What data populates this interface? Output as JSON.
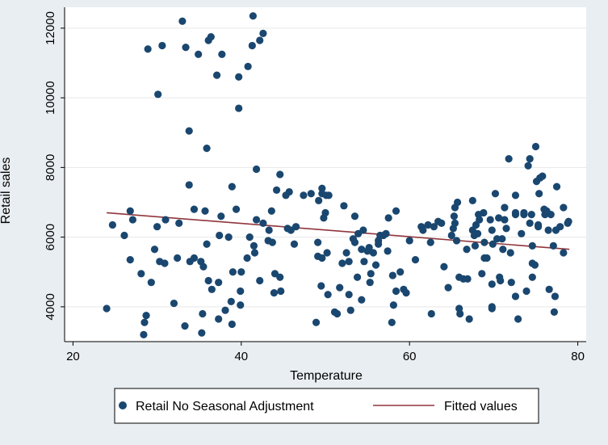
{
  "chart_data": {
    "type": "scatter",
    "xlabel": "Temperature",
    "ylabel": "Retail sales",
    "xlim": [
      19,
      81
    ],
    "ylim": [
      3000,
      12600
    ],
    "xticks": [
      20,
      40,
      60,
      80
    ],
    "yticks": [
      4000,
      6000,
      8000,
      10000,
      12000
    ],
    "grid": "horizontal",
    "legend_position": "bottom",
    "series": [
      {
        "name": "Retail No Seasonal Adjustment",
        "kind": "scatter",
        "color": "#1a476f",
        "points": [
          [
            24.0,
            3950
          ],
          [
            24.7,
            6350
          ],
          [
            26.1,
            6050
          ],
          [
            26.8,
            6750
          ],
          [
            26.8,
            5350
          ],
          [
            27.1,
            6500
          ],
          [
            28.1,
            4950
          ],
          [
            28.4,
            3200
          ],
          [
            28.5,
            3550
          ],
          [
            28.7,
            3750
          ],
          [
            28.9,
            11400
          ],
          [
            29.3,
            4700
          ],
          [
            29.7,
            5650
          ],
          [
            30.0,
            6300
          ],
          [
            30.1,
            10100
          ],
          [
            30.3,
            5300
          ],
          [
            30.6,
            11500
          ],
          [
            30.9,
            5250
          ],
          [
            31.0,
            6500
          ],
          [
            32.0,
            4100
          ],
          [
            32.4,
            5400
          ],
          [
            32.6,
            6400
          ],
          [
            33.0,
            12200
          ],
          [
            33.3,
            3450
          ],
          [
            33.4,
            11450
          ],
          [
            33.8,
            9050
          ],
          [
            33.8,
            7500
          ],
          [
            33.9,
            5300
          ],
          [
            34.4,
            6800
          ],
          [
            34.4,
            5400
          ],
          [
            34.9,
            11250
          ],
          [
            35.2,
            5300
          ],
          [
            35.3,
            3250
          ],
          [
            35.4,
            3800
          ],
          [
            35.5,
            5150
          ],
          [
            35.7,
            6750
          ],
          [
            35.9,
            8550
          ],
          [
            35.9,
            5800
          ],
          [
            36.1,
            11650
          ],
          [
            36.1,
            4750
          ],
          [
            36.4,
            11750
          ],
          [
            36.5,
            4500
          ],
          [
            37.1,
            10650
          ],
          [
            37.3,
            3650
          ],
          [
            37.3,
            4700
          ],
          [
            37.4,
            6050
          ],
          [
            37.6,
            6600
          ],
          [
            37.7,
            11250
          ],
          [
            38.1,
            3900
          ],
          [
            38.5,
            6000
          ],
          [
            38.8,
            4150
          ],
          [
            38.9,
            3500
          ],
          [
            38.9,
            7450
          ],
          [
            39.0,
            5000
          ],
          [
            39.4,
            6800
          ],
          [
            39.7,
            9700
          ],
          [
            39.7,
            10600
          ],
          [
            39.9,
            4450
          ],
          [
            39.9,
            4050
          ],
          [
            40.0,
            5000
          ],
          [
            40.7,
            5400
          ],
          [
            40.8,
            10900
          ],
          [
            41.0,
            6000
          ],
          [
            41.3,
            11500
          ],
          [
            41.4,
            12350
          ],
          [
            41.5,
            5750
          ],
          [
            41.6,
            5550
          ],
          [
            41.8,
            6500
          ],
          [
            41.8,
            7950
          ],
          [
            42.2,
            11650
          ],
          [
            42.2,
            4750
          ],
          [
            42.6,
            11850
          ],
          [
            42.6,
            6400
          ],
          [
            43.2,
            5900
          ],
          [
            43.3,
            6200
          ],
          [
            43.6,
            6750
          ],
          [
            43.7,
            5850
          ],
          [
            43.9,
            4400
          ],
          [
            44.0,
            4950
          ],
          [
            44.2,
            7350
          ],
          [
            44.6,
            4850
          ],
          [
            44.6,
            7800
          ],
          [
            44.7,
            4450
          ],
          [
            45.3,
            7200
          ],
          [
            45.5,
            6250
          ],
          [
            45.7,
            7300
          ],
          [
            45.9,
            6200
          ],
          [
            46.3,
            5800
          ],
          [
            46.5,
            6300
          ],
          [
            47.4,
            7200
          ],
          [
            48.3,
            7250
          ],
          [
            48.9,
            3550
          ],
          [
            49.1,
            5450
          ],
          [
            49.1,
            5850
          ],
          [
            49.2,
            7050
          ],
          [
            49.5,
            4600
          ],
          [
            49.6,
            7400
          ],
          [
            49.6,
            7250
          ],
          [
            49.6,
            5400
          ],
          [
            49.8,
            6550
          ],
          [
            50.0,
            6700
          ],
          [
            50.1,
            7200
          ],
          [
            50.2,
            5550
          ],
          [
            50.3,
            4350
          ],
          [
            50.4,
            7200
          ],
          [
            51.1,
            3850
          ],
          [
            51.4,
            3800
          ],
          [
            51.7,
            4550
          ],
          [
            52.0,
            5250
          ],
          [
            52.2,
            6900
          ],
          [
            52.5,
            5550
          ],
          [
            52.8,
            4350
          ],
          [
            52.8,
            5300
          ],
          [
            53.0,
            3900
          ],
          [
            53.3,
            5950
          ],
          [
            53.5,
            6600
          ],
          [
            53.5,
            5850
          ],
          [
            53.8,
            4850
          ],
          [
            53.9,
            6100
          ],
          [
            54.3,
            5650
          ],
          [
            54.3,
            4200
          ],
          [
            54.5,
            6200
          ],
          [
            54.6,
            5300
          ],
          [
            55.0,
            5600
          ],
          [
            55.2,
            5700
          ],
          [
            55.3,
            4700
          ],
          [
            55.4,
            4950
          ],
          [
            55.7,
            5550
          ],
          [
            56.0,
            5200
          ],
          [
            56.3,
            5900
          ],
          [
            56.3,
            5800
          ],
          [
            56.5,
            6050
          ],
          [
            56.9,
            6050
          ],
          [
            57.2,
            6100
          ],
          [
            57.4,
            5600
          ],
          [
            57.5,
            6550
          ],
          [
            57.9,
            3550
          ],
          [
            58.0,
            4900
          ],
          [
            58.1,
            4050
          ],
          [
            58.4,
            4450
          ],
          [
            58.4,
            6750
          ],
          [
            58.9,
            5000
          ],
          [
            59.3,
            4500
          ],
          [
            59.6,
            4400
          ],
          [
            60.0,
            5900
          ],
          [
            60.7,
            5350
          ],
          [
            61.4,
            6300
          ],
          [
            61.6,
            6200
          ],
          [
            62.2,
            6350
          ],
          [
            62.5,
            5850
          ],
          [
            62.6,
            3800
          ],
          [
            62.9,
            6300
          ],
          [
            63.4,
            6450
          ],
          [
            63.8,
            6400
          ],
          [
            64.1,
            5150
          ],
          [
            64.6,
            4550
          ],
          [
            65.0,
            6050
          ],
          [
            65.2,
            6250
          ],
          [
            65.3,
            6600
          ],
          [
            65.4,
            6400
          ],
          [
            65.4,
            6850
          ],
          [
            65.6,
            5900
          ],
          [
            65.7,
            7000
          ],
          [
            65.9,
            4850
          ],
          [
            65.9,
            3950
          ],
          [
            66.0,
            3800
          ],
          [
            66.4,
            4800
          ],
          [
            66.8,
            5650
          ],
          [
            66.9,
            4800
          ],
          [
            67.1,
            3650
          ],
          [
            67.5,
            6200
          ],
          [
            67.5,
            7050
          ],
          [
            67.7,
            6050
          ],
          [
            67.8,
            5750
          ],
          [
            67.9,
            6350
          ],
          [
            68.1,
            6100
          ],
          [
            68.2,
            6650
          ],
          [
            68.3,
            6500
          ],
          [
            68.6,
            4950
          ],
          [
            68.8,
            6700
          ],
          [
            68.9,
            5850
          ],
          [
            68.9,
            5400
          ],
          [
            69.2,
            5400
          ],
          [
            69.6,
            6500
          ],
          [
            69.8,
            6200
          ],
          [
            69.8,
            4650
          ],
          [
            69.8,
            4000
          ],
          [
            69.8,
            3950
          ],
          [
            69.9,
            5800
          ],
          [
            70.2,
            7250
          ],
          [
            70.4,
            5950
          ],
          [
            70.6,
            6550
          ],
          [
            70.7,
            4850
          ],
          [
            70.8,
            4750
          ],
          [
            71.0,
            5950
          ],
          [
            71.1,
            5650
          ],
          [
            71.3,
            6850
          ],
          [
            71.3,
            6500
          ],
          [
            71.5,
            6250
          ],
          [
            71.8,
            8250
          ],
          [
            72.0,
            5550
          ],
          [
            72.1,
            4700
          ],
          [
            72.6,
            6700
          ],
          [
            72.6,
            7200
          ],
          [
            72.6,
            6650
          ],
          [
            72.6,
            4300
          ],
          [
            72.9,
            3650
          ],
          [
            73.3,
            6100
          ],
          [
            73.6,
            6700
          ],
          [
            73.6,
            6650
          ],
          [
            73.9,
            4450
          ],
          [
            74.1,
            8050
          ],
          [
            74.3,
            8250
          ],
          [
            74.3,
            6400
          ],
          [
            74.5,
            6650
          ],
          [
            74.6,
            5250
          ],
          [
            74.6,
            4850
          ],
          [
            74.6,
            5750
          ],
          [
            74.9,
            5200
          ],
          [
            75.0,
            8600
          ],
          [
            75.1,
            7600
          ],
          [
            75.3,
            6350
          ],
          [
            75.3,
            6300
          ],
          [
            75.4,
            7250
          ],
          [
            75.5,
            7700
          ],
          [
            75.8,
            7750
          ],
          [
            76.0,
            6800
          ],
          [
            76.1,
            6650
          ],
          [
            76.3,
            6750
          ],
          [
            76.5,
            6200
          ],
          [
            76.6,
            4500
          ],
          [
            76.8,
            6650
          ],
          [
            77.1,
            5750
          ],
          [
            77.2,
            3850
          ],
          [
            77.3,
            4300
          ],
          [
            77.4,
            6200
          ],
          [
            77.5,
            7450
          ],
          [
            77.9,
            6300
          ],
          [
            78.3,
            6850
          ],
          [
            78.3,
            5550
          ],
          [
            78.8,
            6400
          ],
          [
            78.9,
            6450
          ]
        ]
      },
      {
        "name": "Fitted values",
        "kind": "line",
        "color": "#90353b",
        "points": [
          [
            24.0,
            6700
          ],
          [
            79.0,
            5650
          ]
        ]
      }
    ]
  }
}
